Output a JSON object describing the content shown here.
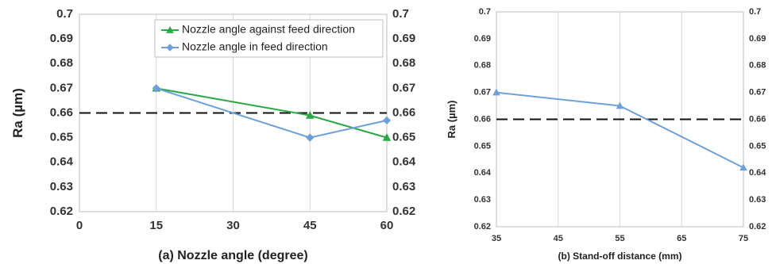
{
  "chart_data": [
    {
      "type": "line",
      "xlabel": "(a) Nozzle angle (degree)",
      "ylabel": "Ra (µm)",
      "xlim": [
        0,
        60
      ],
      "ylim": [
        0.62,
        0.7
      ],
      "xticks": [
        0,
        15,
        30,
        45,
        60
      ],
      "xtick_labels": [
        "0",
        "15",
        "30",
        "45",
        "60"
      ],
      "yticks": [
        0.62,
        0.63,
        0.64,
        0.65,
        0.66,
        0.67,
        0.68,
        0.69,
        0.7
      ],
      "ytick_labels": [
        "0.62",
        "0.63",
        "0.64",
        "0.65",
        "0.66",
        "0.67",
        "0.68",
        "0.69",
        "0.7"
      ],
      "secondary_y_axis": true,
      "grid": "vertical",
      "legend": "top-right",
      "reference_line": {
        "y": 0.66,
        "style": "dashed",
        "color": "#111111"
      },
      "series": [
        {
          "name": "Nozzle angle against feed direction",
          "color": "#2aa845",
          "marker": "triangle",
          "x": [
            15,
            45,
            60
          ],
          "y": [
            0.67,
            0.659,
            0.65
          ]
        },
        {
          "name": "Nozzle angle in feed direction",
          "color": "#6fa0d8",
          "marker": "diamond",
          "x": [
            15,
            45,
            60
          ],
          "y": [
            0.67,
            0.65,
            0.657
          ]
        }
      ]
    },
    {
      "type": "line",
      "xlabel": "(b) Stand-off distance (mm)",
      "ylabel": "Ra (µm)",
      "xlim": [
        35,
        75
      ],
      "ylim": [
        0.62,
        0.7
      ],
      "xticks": [
        35,
        45,
        55,
        65,
        75
      ],
      "xtick_labels": [
        "35",
        "45",
        "55",
        "65",
        "75"
      ],
      "yticks": [
        0.62,
        0.63,
        0.64,
        0.65,
        0.66,
        0.67,
        0.68,
        0.69,
        0.7
      ],
      "ytick_labels": [
        "0.62",
        "0.63",
        "0.64",
        "0.65",
        "0.66",
        "0.67",
        "0.68",
        "0.69",
        "0.7"
      ],
      "secondary_y_axis": true,
      "grid": "vertical",
      "legend": "none",
      "reference_line": {
        "y": 0.66,
        "style": "dashed",
        "color": "#111111"
      },
      "series": [
        {
          "color": "#6fa0d8",
          "marker": "triangle",
          "x": [
            35,
            55,
            75
          ],
          "y": [
            0.67,
            0.665,
            0.642
          ]
        }
      ]
    }
  ]
}
